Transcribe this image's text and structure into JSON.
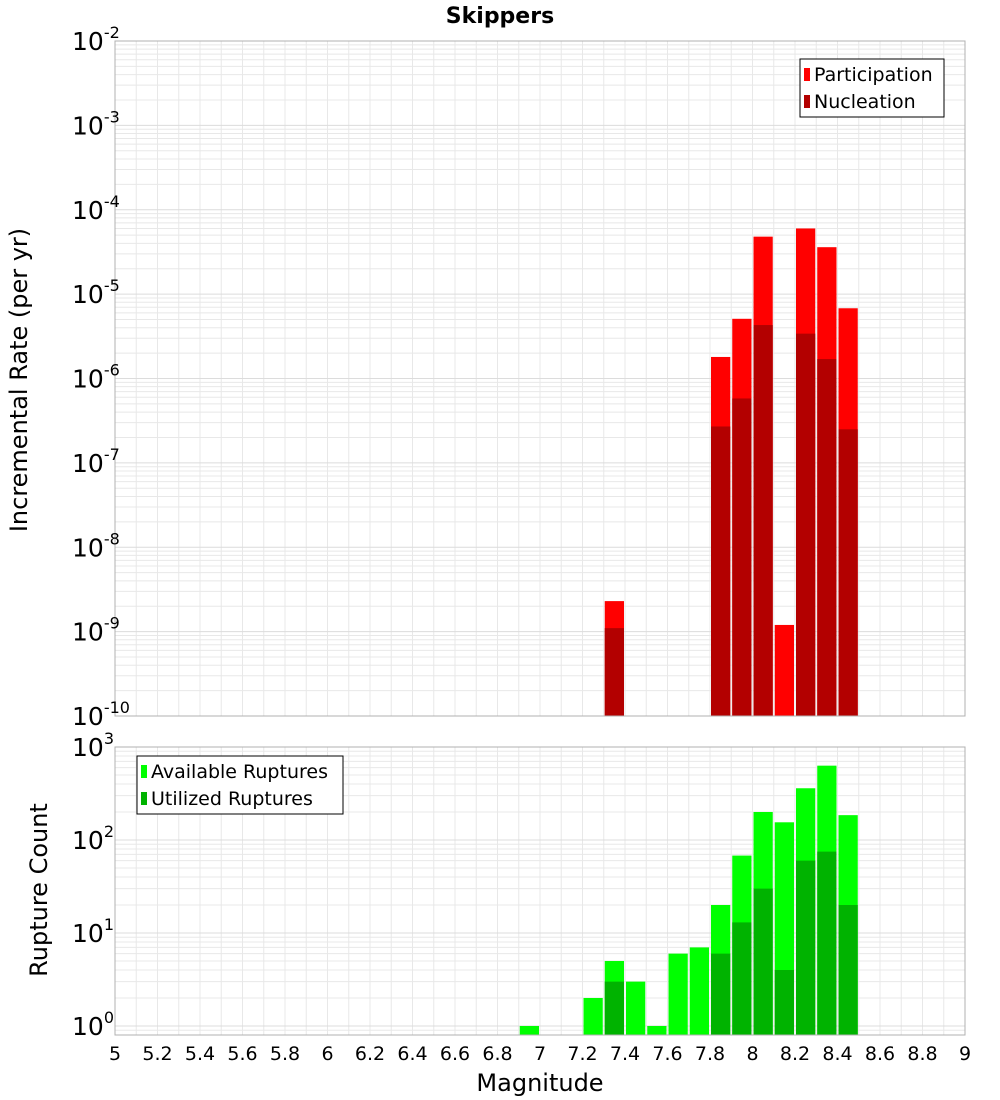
{
  "chart_data": [
    {
      "type": "bar",
      "title": "Skippers",
      "xlabel": "Magnitude",
      "ylabel": "Incremental Rate (per yr)",
      "yscale": "log",
      "xlim": [
        5,
        9
      ],
      "ylim": [
        1e-10,
        0.01
      ],
      "bar_width": 0.1,
      "grid": true,
      "legend_position": "top-right",
      "series": [
        {
          "name": "Participation",
          "color": "#ff0000",
          "x": [
            7.35,
            7.85,
            7.95,
            8.05,
            8.15,
            8.25,
            8.35,
            8.45
          ],
          "values": [
            2.3e-09,
            1.8e-06,
            5.1e-06,
            4.8e-05,
            1.2e-09,
            6e-05,
            3.6e-05,
            6.8e-06
          ]
        },
        {
          "name": "Nucleation",
          "color": "#b30000",
          "x": [
            7.35,
            7.85,
            7.95,
            8.05,
            8.25,
            8.35,
            8.45
          ],
          "values": [
            1.1e-09,
            2.7e-07,
            5.8e-07,
            4.3e-06,
            3.4e-06,
            1.7e-06,
            2.5e-07
          ]
        }
      ]
    },
    {
      "type": "bar",
      "xlabel": "Magnitude",
      "ylabel": "Rupture Count",
      "yscale": "log",
      "xlim": [
        5,
        9
      ],
      "ylim": [
        0.8,
        1000
      ],
      "bar_width": 0.1,
      "grid": true,
      "legend_position": "top-left",
      "series": [
        {
          "name": "Available Ruptures",
          "color": "#00ff00",
          "x": [
            6.95,
            7.25,
            7.35,
            7.45,
            7.55,
            7.65,
            7.75,
            7.85,
            7.95,
            8.05,
            8.15,
            8.25,
            8.35,
            8.45
          ],
          "values": [
            1,
            2,
            5,
            3,
            1,
            6,
            7,
            20,
            68,
            200,
            155,
            360,
            630,
            185
          ]
        },
        {
          "name": "Utilized Ruptures",
          "color": "#00b300",
          "x": [
            7.35,
            7.85,
            7.95,
            8.05,
            8.15,
            8.25,
            8.35,
            8.45
          ],
          "values": [
            3,
            6,
            13,
            30,
            4,
            60,
            75,
            20
          ]
        }
      ]
    }
  ],
  "x_ticks": [
    "5",
    "5.2",
    "5.4",
    "5.6",
    "5.8",
    "6",
    "6.2",
    "6.4",
    "6.6",
    "6.8",
    "7",
    "7.2",
    "7.4",
    "7.6",
    "7.8",
    "8",
    "8.2",
    "8.4",
    "8.6",
    "8.8",
    "9"
  ],
  "top_y_ticks": [
    {
      "base": "10",
      "exp": "-2"
    },
    {
      "base": "10",
      "exp": "-3"
    },
    {
      "base": "10",
      "exp": "-4"
    },
    {
      "base": "10",
      "exp": "-5"
    },
    {
      "base": "10",
      "exp": "-6"
    },
    {
      "base": "10",
      "exp": "-7"
    },
    {
      "base": "10",
      "exp": "-8"
    },
    {
      "base": "10",
      "exp": "-9"
    },
    {
      "base": "10",
      "exp": "-10"
    }
  ],
  "bottom_y_ticks": [
    {
      "base": "10",
      "exp": "3"
    },
    {
      "base": "10",
      "exp": "2"
    },
    {
      "base": "10",
      "exp": "1"
    },
    {
      "base": "10",
      "exp": "0"
    }
  ],
  "colors": {
    "grid": "#e8e8e8",
    "frame": "#b0b0b0"
  }
}
